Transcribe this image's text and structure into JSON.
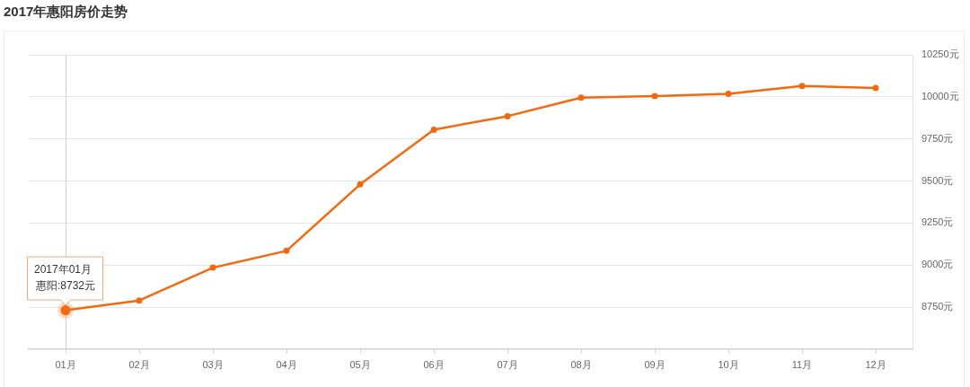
{
  "chart_data": {
    "type": "line",
    "title": "2017年惠阳房价走势",
    "categories": [
      "01月",
      "02月",
      "03月",
      "04月",
      "05月",
      "06月",
      "07月",
      "08月",
      "09月",
      "10月",
      "11月",
      "12月"
    ],
    "series": [
      {
        "color": "#f26a10",
        "values": [
          8732,
          8790,
          8985,
          9085,
          9480,
          9805,
          9885,
          9995,
          10005,
          10018,
          10065,
          10053
        ]
      }
    ],
    "ylim": [
      8500,
      10250
    ],
    "yticks": [
      {
        "value": 8750,
        "label": "8750元"
      },
      {
        "value": 9000,
        "label": "9000元"
      },
      {
        "value": 9250,
        "label": "9250元"
      },
      {
        "value": 9500,
        "label": "9500元"
      },
      {
        "value": 9750,
        "label": "9750元"
      },
      {
        "value": 10000,
        "label": "10000元"
      },
      {
        "value": 10250,
        "label": "10250元"
      }
    ],
    "grid": "y",
    "marker": "circle",
    "line_style": "solid",
    "ref_lines": [
      {
        "axis": "x",
        "value": "01月",
        "color": "#d0d0d0"
      }
    ],
    "annotations": [
      "2017年01月",
      {
        "text": "惠阳:8732元",
        "x": "01月",
        "y": 8732
      }
    ]
  }
}
